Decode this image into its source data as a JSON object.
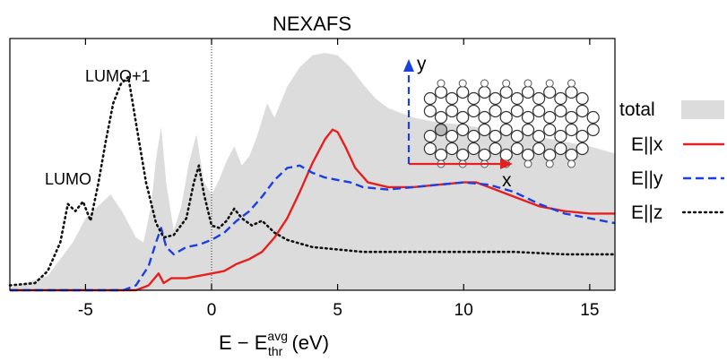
{
  "chart_data": {
    "type": "line",
    "title": "NEXAFS",
    "xlabel": {
      "prefix": "E − E",
      "sup": "avg",
      "sub": "thr",
      "suffix": " (eV)"
    },
    "ylabel": "",
    "xlim": [
      -8,
      16
    ],
    "ylim": [
      0,
      1.05
    ],
    "xticks": [
      "-5",
      "0",
      "5",
      "10",
      "15"
    ],
    "xtick_values": [
      -5,
      0,
      5,
      10,
      15
    ],
    "vline_x": 0,
    "annotations": [
      "LUMO",
      "LUMO+1"
    ],
    "inset": {
      "x_label": "x",
      "y_label": "y",
      "x_color": "#e62020",
      "y_color": "#1c3fe0"
    },
    "series": [
      {
        "name": "total",
        "style": "filled",
        "color": "#dcdcdc",
        "x": [
          -8,
          -6.5,
          -5.5,
          -5,
          -4.5,
          -4,
          -3.5,
          -3,
          -2.7,
          -2.4,
          -2.2,
          -2.0,
          -1.8,
          -1.5,
          -1.2,
          -0.9,
          -0.6,
          -0.3,
          0,
          0.3,
          0.6,
          0.9,
          1.2,
          1.5,
          1.8,
          2.2,
          2.5,
          3,
          3.5,
          4,
          4.5,
          5,
          5.5,
          6,
          6.5,
          7,
          8,
          9,
          10,
          11,
          12,
          13,
          14,
          15,
          16
        ],
        "y": [
          0.01,
          0.06,
          0.2,
          0.3,
          0.35,
          0.4,
          0.32,
          0.22,
          0.2,
          0.35,
          0.55,
          0.68,
          0.45,
          0.25,
          0.35,
          0.53,
          0.65,
          0.45,
          0.4,
          0.46,
          0.54,
          0.6,
          0.52,
          0.56,
          0.64,
          0.78,
          0.72,
          0.85,
          0.93,
          0.98,
          0.99,
          0.98,
          0.93,
          0.86,
          0.8,
          0.76,
          0.72,
          0.7,
          0.69,
          0.67,
          0.66,
          0.64,
          0.62,
          0.6,
          0.57
        ]
      },
      {
        "name": "E||x",
        "style": "solid",
        "color": "#e62020",
        "x": [
          -8,
          -3,
          -2.5,
          -2.1,
          -1.9,
          -1.6,
          -1.0,
          0,
          0.5,
          1,
          1.5,
          2,
          2.5,
          3,
          3.5,
          4,
          4.5,
          4.8,
          5,
          5.3,
          5.7,
          6.2,
          7,
          8,
          9,
          10,
          10.5,
          11,
          12,
          13,
          14,
          15,
          16
        ],
        "y": [
          0.0,
          0.0,
          0.02,
          0.07,
          0.03,
          0.05,
          0.05,
          0.07,
          0.08,
          0.11,
          0.13,
          0.16,
          0.22,
          0.3,
          0.41,
          0.53,
          0.63,
          0.67,
          0.66,
          0.6,
          0.51,
          0.45,
          0.43,
          0.43,
          0.44,
          0.45,
          0.45,
          0.43,
          0.39,
          0.35,
          0.33,
          0.32,
          0.32
        ]
      },
      {
        "name": "E||y",
        "style": "dashed",
        "color": "#1c3fe0",
        "x": [
          -8,
          -3.5,
          -3,
          -2.5,
          -2.2,
          -2.0,
          -1.8,
          -1.5,
          -1.0,
          -0.5,
          0,
          0.5,
          1,
          1.5,
          2,
          2.5,
          3,
          3.5,
          4,
          4.5,
          5,
          5.5,
          6,
          7,
          8,
          9,
          10,
          11,
          12,
          13,
          14,
          15,
          16
        ],
        "y": [
          0.0,
          0.0,
          0.02,
          0.1,
          0.2,
          0.26,
          0.18,
          0.15,
          0.18,
          0.19,
          0.21,
          0.24,
          0.29,
          0.33,
          0.39,
          0.46,
          0.51,
          0.52,
          0.49,
          0.47,
          0.46,
          0.45,
          0.43,
          0.42,
          0.43,
          0.44,
          0.45,
          0.44,
          0.41,
          0.36,
          0.32,
          0.3,
          0.28
        ]
      },
      {
        "name": "E||z",
        "style": "dotted",
        "color": "#111111",
        "x": [
          -8,
          -7,
          -6.5,
          -6,
          -5.7,
          -5.4,
          -5.1,
          -4.8,
          -4.5,
          -4.2,
          -3.9,
          -3.6,
          -3.3,
          -3.0,
          -2.6,
          -2.2,
          -1.9,
          -1.5,
          -1.0,
          -0.7,
          -0.5,
          -0.3,
          0,
          0.3,
          0.6,
          0.9,
          1.2,
          1.6,
          2.0,
          2.5,
          3,
          4,
          5,
          6,
          8,
          10,
          12,
          14,
          16
        ],
        "y": [
          0.02,
          0.03,
          0.08,
          0.2,
          0.36,
          0.33,
          0.37,
          0.29,
          0.44,
          0.62,
          0.78,
          0.86,
          0.89,
          0.7,
          0.45,
          0.28,
          0.22,
          0.23,
          0.3,
          0.45,
          0.52,
          0.4,
          0.27,
          0.26,
          0.29,
          0.34,
          0.3,
          0.27,
          0.29,
          0.24,
          0.21,
          0.18,
          0.17,
          0.16,
          0.16,
          0.16,
          0.16,
          0.15,
          0.15
        ]
      }
    ]
  }
}
